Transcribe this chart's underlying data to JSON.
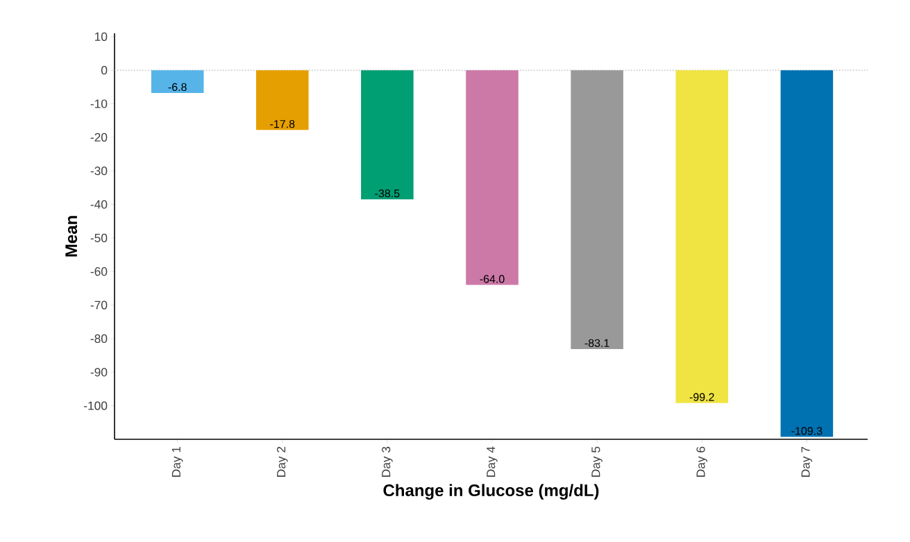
{
  "chart_data": {
    "type": "bar",
    "xlabel": "Change in Glucose (mg/dL)",
    "ylabel": "Mean",
    "categories": [
      "Day 1",
      "Day 2",
      "Day 3",
      "Day 4",
      "Day 5",
      "Day 6",
      "Day 7"
    ],
    "values": [
      -6.8,
      -17.8,
      -38.5,
      -64.0,
      -83.1,
      -99.2,
      -109.3
    ],
    "value_labels": [
      "-6.8",
      "-17.8",
      "-38.5",
      "-64.0",
      "-83.1",
      "-99.2",
      "-109.3"
    ],
    "colors": [
      "#56b4e9",
      "#e69f00",
      "#009e73",
      "#cc79a7",
      "#999999",
      "#f0e442",
      "#0072b2"
    ],
    "ylim": [
      -110,
      11
    ],
    "yticks": [
      -100,
      -90,
      -80,
      -70,
      -60,
      -50,
      -40,
      -30,
      -20,
      -10,
      0,
      10
    ],
    "ref_lines": [
      {
        "axis": "y",
        "value": 0,
        "color": "#aaaaaa",
        "line_style": "dotted"
      }
    ],
    "grid": false
  }
}
